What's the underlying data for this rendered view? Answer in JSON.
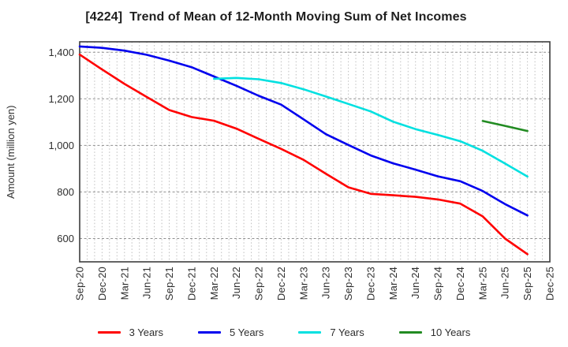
{
  "chart_data": {
    "type": "line",
    "title": "[4224]  Trend of Mean of 12-Month Moving Sum of Net Incomes",
    "ylabel": "Amount (million yen)",
    "xlabel": "",
    "categories": [
      "Sep-20",
      "Dec-20",
      "Mar-21",
      "Jun-21",
      "Sep-21",
      "Dec-21",
      "Mar-22",
      "Jun-22",
      "Sep-22",
      "Dec-22",
      "Mar-23",
      "Jun-23",
      "Sep-23",
      "Dec-23",
      "Mar-24",
      "Jun-24",
      "Sep-24",
      "Dec-24",
      "Mar-25",
      "Jun-25",
      "Sep-25",
      "Dec-25"
    ],
    "ylim": [
      500,
      1445
    ],
    "yticks": [
      600,
      800,
      1000,
      1200,
      1400
    ],
    "ytick_labels": [
      "600",
      "800",
      "1,000",
      "1,200",
      "1,400"
    ],
    "grid": true,
    "minor_x_divisions": 3,
    "legend_position": "bottom",
    "series": [
      {
        "name": "3 Years",
        "color": "#FF0000",
        "values": [
          1390,
          1326,
          1264,
          1208,
          1152,
          1122,
          1106,
          1072,
          1028,
          985,
          938,
          878,
          820,
          792,
          786,
          779,
          768,
          750,
          695,
          600,
          533,
          null
        ]
      },
      {
        "name": "5 Years",
        "color": "#0000EE",
        "values": [
          1425,
          1419,
          1407,
          1389,
          1364,
          1336,
          1296,
          1256,
          1213,
          1175,
          1112,
          1048,
          1002,
          957,
          923,
          896,
          867,
          846,
          804,
          748,
          699,
          null
        ]
      },
      {
        "name": "7 Years",
        "color": "#00E0E0",
        "values": [
          null,
          null,
          null,
          null,
          null,
          null,
          1286,
          1290,
          1284,
          1268,
          1241,
          1210,
          1178,
          1146,
          1102,
          1070,
          1045,
          1018,
          977,
          922,
          866,
          null
        ]
      },
      {
        "name": "10 Years",
        "color": "#228B22",
        "values": [
          null,
          null,
          null,
          null,
          null,
          null,
          null,
          null,
          null,
          null,
          null,
          null,
          null,
          null,
          null,
          null,
          null,
          null,
          1105,
          1084,
          1062,
          null
        ]
      }
    ]
  }
}
